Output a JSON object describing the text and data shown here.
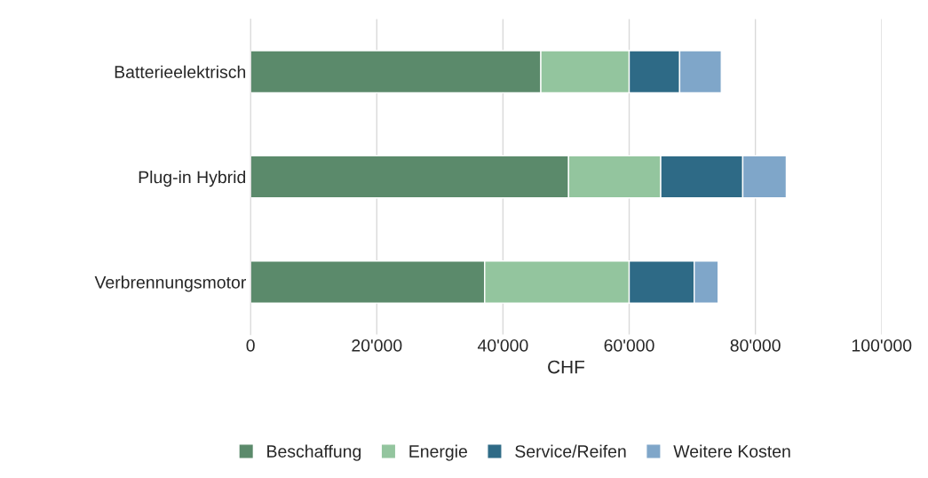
{
  "chart_data": {
    "type": "bar",
    "orientation": "horizontal",
    "stacked": true,
    "xlabel": "CHF",
    "categories": [
      "Batterieelektrisch",
      "Plug-in Hybrid",
      "Verbrennungsmotor"
    ],
    "series": [
      {
        "name": "Beschaffung",
        "color": "#5b8a6b",
        "values": [
          46000,
          50400,
          37100
        ]
      },
      {
        "name": "Energie",
        "color": "#93c59e",
        "values": [
          14000,
          14600,
          22900
        ]
      },
      {
        "name": "Service/Reifen",
        "color": "#2e6a86",
        "values": [
          8000,
          13000,
          10300
        ]
      },
      {
        "name": "Weitere Kosten",
        "color": "#7fa6c9",
        "values": [
          6600,
          6900,
          3800
        ]
      }
    ],
    "xlim": [
      0,
      100000
    ],
    "xticks": [
      0,
      {
        "value": 20000,
        "label": "20'000"
      },
      {
        "value": 40000,
        "label": "40'000"
      },
      {
        "value": 60000,
        "label": "60'000"
      },
      {
        "value": 80000,
        "label": "80'000"
      },
      {
        "value": 100000,
        "label": "100'000"
      }
    ],
    "grid": "x",
    "legend": "bottom"
  }
}
